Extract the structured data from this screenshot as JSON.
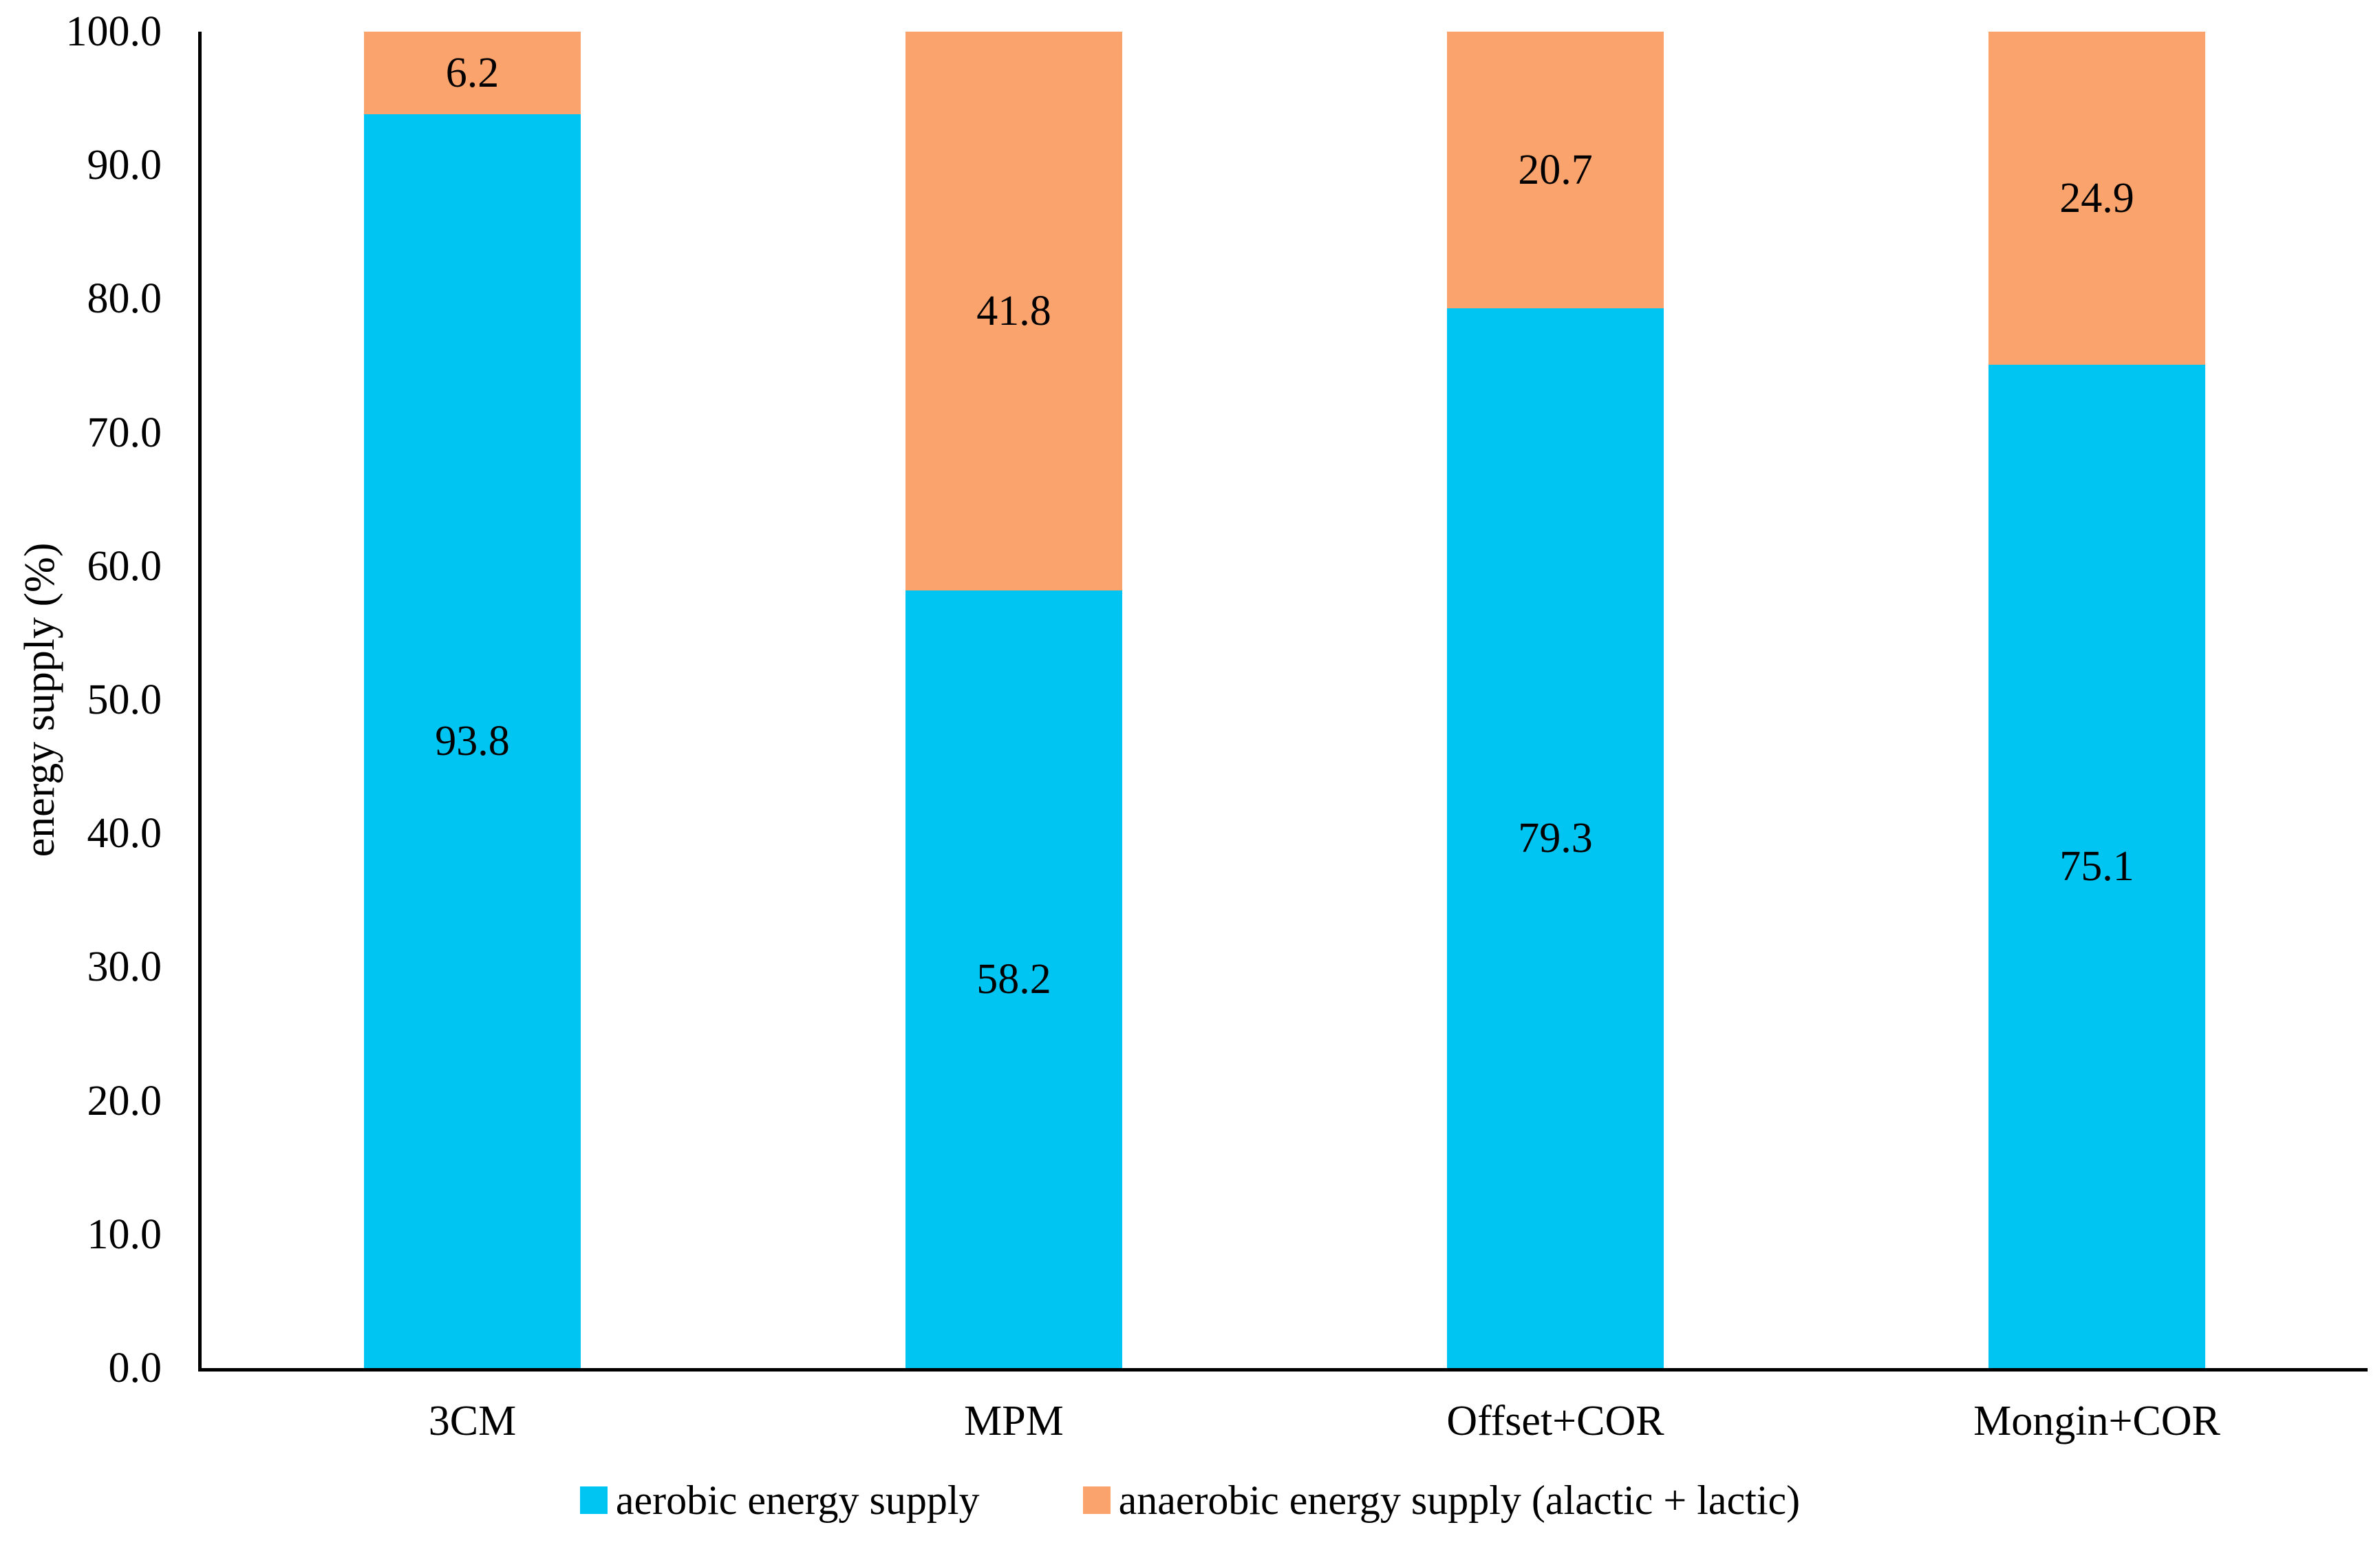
{
  "figure": {
    "background": "#FFFFFF",
    "text_color": "#000000",
    "axis_color": "#000000"
  },
  "chart_data": {
    "type": "bar",
    "stacked": true,
    "title": "",
    "xlabel": "",
    "ylabel": "energy supply (%)",
    "categories": [
      "3CM",
      "MPM",
      "Offset+COR",
      "Mongin+COR"
    ],
    "series": [
      {
        "name": "aerobic energy supply",
        "color": "#00C4F1",
        "values": [
          93.8,
          58.2,
          79.3,
          75.1
        ]
      },
      {
        "name": "anaerobic energy supply (alactic + lactic)",
        "color": "#FBA36C",
        "values": [
          6.2,
          41.8,
          20.7,
          24.9
        ]
      }
    ],
    "ylim": [
      0,
      100
    ],
    "ytick_labels": [
      "0.0",
      "10.0",
      "20.0",
      "30.0",
      "40.0",
      "50.0",
      "60.0",
      "70.0",
      "80.0",
      "90.0",
      "100.0"
    ],
    "grid": false,
    "legend_position": "bottom",
    "bar_value_labels_visible": true
  }
}
